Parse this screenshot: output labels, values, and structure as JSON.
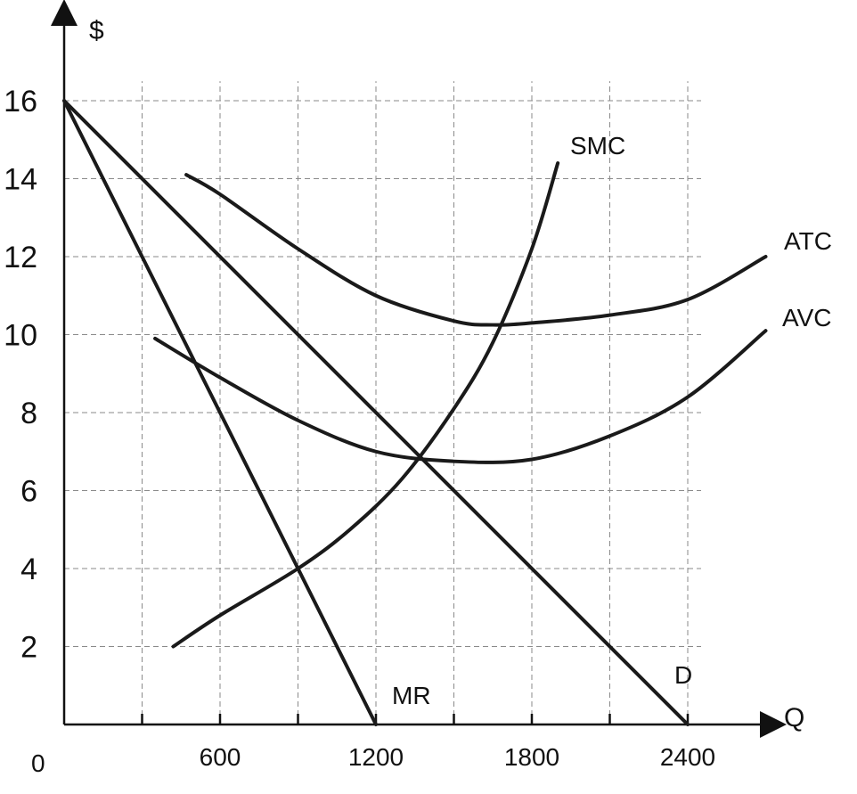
{
  "chart_data": {
    "type": "line",
    "title": "",
    "xlabel": "Q",
    "ylabel": "$",
    "origin_label": "0",
    "xlim": [
      0,
      2700
    ],
    "ylim": [
      0,
      16.5
    ],
    "x_grid": [
      300,
      600,
      900,
      1200,
      1500,
      1800,
      2100,
      2400
    ],
    "y_grid": [
      2,
      4,
      6,
      8,
      10,
      12,
      14,
      16
    ],
    "x_tick_labels": [
      {
        "value": 600,
        "label": "600"
      },
      {
        "value": 1200,
        "label": "1200"
      },
      {
        "value": 1800,
        "label": "1800"
      },
      {
        "value": 2400,
        "label": "2400"
      }
    ],
    "y_tick_labels": [
      {
        "value": 2,
        "label": "2"
      },
      {
        "value": 4,
        "label": "4"
      },
      {
        "value": 6,
        "label": "6"
      },
      {
        "value": 8,
        "label": "8"
      },
      {
        "value": 10,
        "label": "10"
      },
      {
        "value": 12,
        "label": "12"
      },
      {
        "value": 14,
        "label": "14"
      },
      {
        "value": 16,
        "label": "16"
      }
    ],
    "grid": true,
    "series": [
      {
        "name": "D",
        "x": [
          0,
          2400
        ],
        "y": [
          16,
          0
        ]
      },
      {
        "name": "MR",
        "x": [
          0,
          1200
        ],
        "y": [
          16,
          0
        ]
      },
      {
        "name": "SMC",
        "x": [
          420,
          600,
          900,
          1100,
          1300,
          1500,
          1650,
          1800,
          1900
        ],
        "y": [
          2,
          2.8,
          4,
          5,
          6.3,
          8.1,
          9.8,
          12.2,
          14.4
        ]
      },
      {
        "name": "ATC",
        "x": [
          470,
          600,
          900,
          1200,
          1500,
          1650,
          1800,
          2100,
          2400,
          2700
        ],
        "y": [
          14.1,
          13.6,
          12.2,
          11.0,
          10.35,
          10.25,
          10.3,
          10.5,
          10.9,
          12.0
        ]
      },
      {
        "name": "AVC",
        "x": [
          350,
          600,
          900,
          1200,
          1500,
          1800,
          2100,
          2400,
          2700
        ],
        "y": [
          9.9,
          8.9,
          7.8,
          7.0,
          6.75,
          6.8,
          7.4,
          8.4,
          10.1
        ]
      }
    ]
  }
}
